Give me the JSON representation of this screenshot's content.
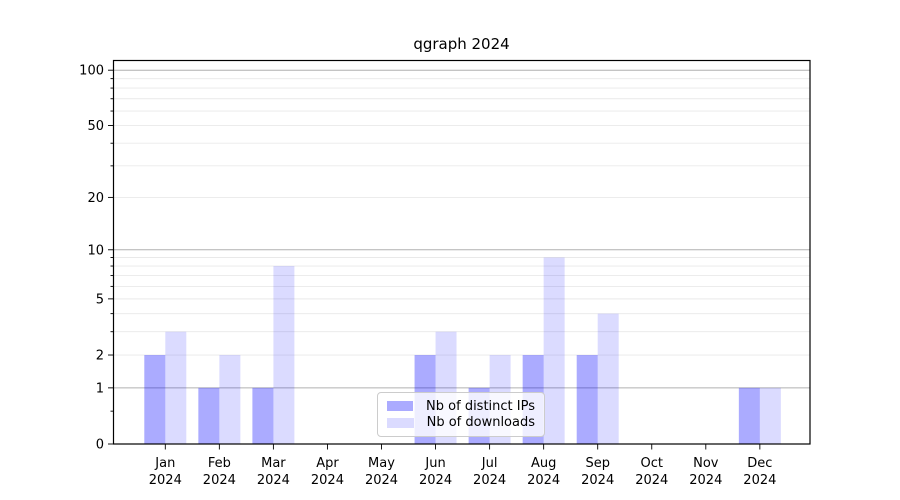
{
  "chart_data": {
    "type": "bar",
    "title": "qgraph 2024",
    "categories": [
      "Jan",
      "Feb",
      "Mar",
      "Apr",
      "May",
      "Jun",
      "Jul",
      "Aug",
      "Sep",
      "Oct",
      "Nov",
      "Dec"
    ],
    "x_tick_line2": "2024",
    "series": [
      {
        "name": "Nb of distinct IPs",
        "color": "rgba(0,0,255,0.33)",
        "values": [
          2,
          1,
          1,
          0,
          0,
          2,
          1,
          2,
          2,
          0,
          0,
          1
        ]
      },
      {
        "name": "Nb of downloads",
        "color": "rgba(0,0,255,0.14)",
        "values": [
          3,
          2,
          8,
          0,
          0,
          3,
          2,
          9,
          4,
          0,
          0,
          1
        ]
      }
    ],
    "yscale": "log10(1+v)",
    "ylabel": "",
    "xlabel": "",
    "ylim": [
      0,
      113
    ],
    "y_ticks": [
      0,
      1,
      2,
      5,
      10,
      20,
      50,
      100
    ],
    "y_minor_ticks": [
      0.5,
      3,
      4,
      6,
      7,
      8,
      9,
      30,
      40,
      60,
      70,
      80,
      90
    ],
    "grid_major": [
      1,
      10,
      100
    ],
    "grid_minor": [
      2,
      3,
      4,
      5,
      6,
      7,
      8,
      9,
      20,
      30,
      40,
      50,
      60,
      70,
      80,
      90
    ],
    "legend_position": "lower center",
    "colors": {
      "bar_ips": "rgba(0,0,255,0.33)",
      "bar_downloads": "rgba(0,0,255,0.14)",
      "grid_major": "#b0b0b0",
      "grid_minor": "#e9e9e9",
      "spine": "#000000",
      "tick_label": "#000000",
      "legend_border": "#cccccc"
    }
  }
}
